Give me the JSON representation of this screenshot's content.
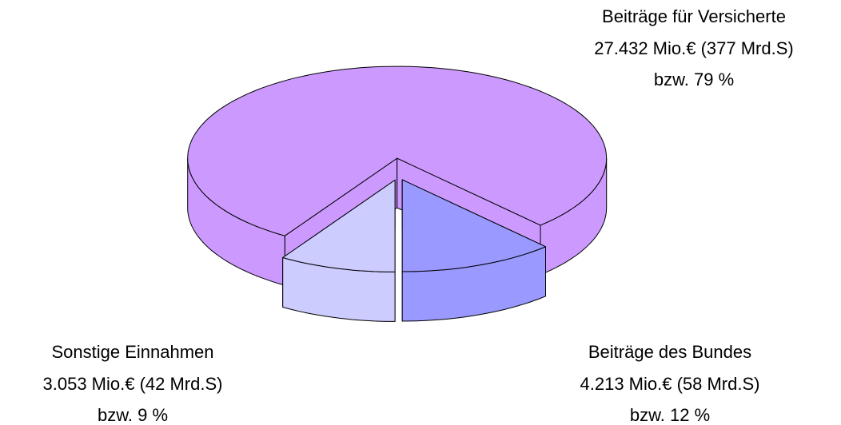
{
  "chart_data": {
    "type": "pie",
    "three_d": true,
    "categories": [
      "Sonstige Einnahmen",
      "Beiträge für Versicherte",
      "Beiträge des Bundes"
    ],
    "amounts": [
      "3.053 Mio.€ (42 Mrd.S)",
      "27.432 Mio.€ (377 Mrd.S)",
      "4.213 Mio.€ (58 Mrd.S)"
    ],
    "values": [
      9,
      79,
      12
    ],
    "value_labels": [
      "bzw. 9 %",
      "bzw. 79 %",
      "bzw. 12 %"
    ],
    "colors": [
      "#ccccff",
      "#cc99ff",
      "#9999ff"
    ],
    "exploded": true
  }
}
